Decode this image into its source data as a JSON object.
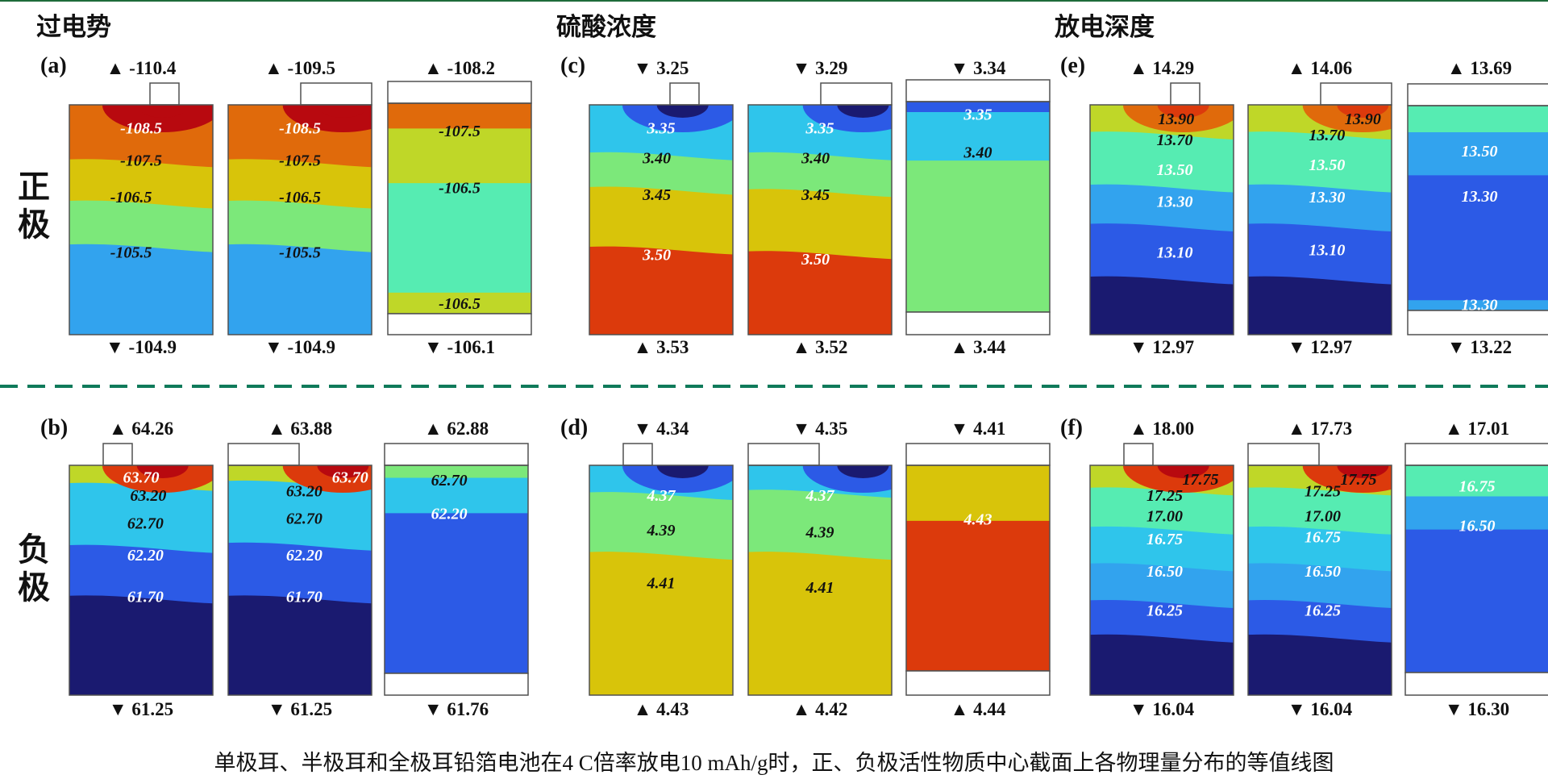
{
  "titles": [
    "过电势",
    "硫酸浓度",
    "放电深度"
  ],
  "row_labels": [
    [
      "正",
      "极"
    ],
    [
      "负",
      "极"
    ]
  ],
  "caption": "单极耳、半极耳和全极耳铅箔电池在4 C倍率放电10 mAh/g时，正、负极活性物质中心截面上各物理量分布的等值线图",
  "colors": {
    "border": "#505050",
    "divider": "#0f7a5a",
    "top_rule": "#1d6b3a",
    "dark_red": "#b8090f",
    "orange_red": "#dc3a0c",
    "orange": "#e06a0b",
    "orange_yellow": "#e2a40b",
    "yellow": "#d8c40a",
    "yellow_green": "#bfd728",
    "green": "#7ce87a",
    "aqua": "#56ecb2",
    "cyan": "#2fc5eb",
    "sky": "#32a3ee",
    "blue": "#2c5ae6",
    "navy": "#1a1a70",
    "deep_navy": "#131354"
  },
  "panels": [
    {
      "id": "a",
      "label": "(a)",
      "cells": [
        {
          "tab": "single",
          "top": "▲ -110.4",
          "bottom": "▼ -104.9",
          "bands": [
            "orange",
            "yellow",
            "green",
            "sky"
          ],
          "labels": [
            {
              "t": "-108.5",
              "c": "white"
            },
            {
              "t": "-107.5",
              "c": "black"
            },
            {
              "t": "-106.5",
              "c": "black"
            },
            {
              "t": "-105.5",
              "c": "black"
            }
          ]
        },
        {
          "tab": "half",
          "top": "▲ -109.5",
          "bottom": "▼ -104.9",
          "bands": [
            "orange",
            "yellow",
            "green",
            "sky"
          ],
          "labels": [
            {
              "t": "-108.5",
              "c": "white"
            },
            {
              "t": "-107.5",
              "c": "black"
            },
            {
              "t": "-106.5",
              "c": "black"
            },
            {
              "t": "-105.5",
              "c": "black"
            }
          ]
        },
        {
          "tab": "full",
          "top": "▲ -108.2",
          "bottom": "▼ -106.1",
          "bands": [
            "orange",
            "yellow_green",
            "aqua",
            "yellow_green"
          ],
          "labels": [
            {
              "t": "-107.5",
              "c": "black"
            },
            {
              "t": "-106.5",
              "c": "black"
            },
            {
              "t": "-106.5",
              "c": "black"
            }
          ]
        }
      ]
    },
    {
      "id": "c",
      "label": "(c)",
      "cells": [
        {
          "tab": "single",
          "top": "▼ 3.25",
          "bottom": "▲ 3.53",
          "bands": [
            "cyan",
            "green",
            "yellow",
            "orange_red"
          ],
          "labels": [
            {
              "t": "3.35",
              "c": "white"
            },
            {
              "t": "3.40",
              "c": "black"
            },
            {
              "t": "3.45",
              "c": "black"
            },
            {
              "t": "3.50",
              "c": "white"
            }
          ]
        },
        {
          "tab": "half",
          "top": "▼ 3.29",
          "bottom": "▲ 3.52",
          "bands": [
            "cyan",
            "green",
            "yellow",
            "orange_red"
          ],
          "labels": [
            {
              "t": "3.35",
              "c": "white"
            },
            {
              "t": "3.40",
              "c": "black"
            },
            {
              "t": "3.45",
              "c": "black"
            },
            {
              "t": "3.50",
              "c": "white"
            }
          ]
        },
        {
          "tab": "full",
          "top": "▼ 3.34",
          "bottom": "▲ 3.44",
          "bands": [
            "blue",
            "cyan",
            "green"
          ],
          "labels": [
            {
              "t": "3.35",
              "c": "white"
            },
            {
              "t": "3.40",
              "c": "black"
            }
          ]
        }
      ]
    },
    {
      "id": "e",
      "label": "(e)",
      "cells": [
        {
          "tab": "single",
          "top": "▲ 14.29",
          "bottom": "▼ 12.97",
          "bands": [
            "yellow_green",
            "aqua",
            "sky",
            "blue",
            "navy"
          ],
          "labels": [
            {
              "t": "13.90",
              "c": "black"
            },
            {
              "t": "13.70",
              "c": "black"
            },
            {
              "t": "13.50",
              "c": "white"
            },
            {
              "t": "13.30",
              "c": "white"
            },
            {
              "t": "13.10",
              "c": "white"
            }
          ]
        },
        {
          "tab": "half",
          "top": "▲ 14.06",
          "bottom": "▼ 12.97",
          "bands": [
            "yellow_green",
            "aqua",
            "sky",
            "blue",
            "navy"
          ],
          "labels": [
            {
              "t": "13.90",
              "c": "black"
            },
            {
              "t": "13.70",
              "c": "black"
            },
            {
              "t": "13.50",
              "c": "white"
            },
            {
              "t": "13.30",
              "c": "white"
            },
            {
              "t": "13.10",
              "c": "white"
            }
          ]
        },
        {
          "tab": "full",
          "top": "▲ 13.69",
          "bottom": "▼ 13.22",
          "bands": [
            "aqua",
            "sky",
            "blue",
            "sky"
          ],
          "labels": [
            {
              "t": "13.50",
              "c": "white"
            },
            {
              "t": "13.30",
              "c": "white"
            },
            {
              "t": "13.30",
              "c": "white"
            }
          ]
        }
      ]
    },
    {
      "id": "b",
      "label": "(b)",
      "cells": [
        {
          "tab": "single",
          "top": "▲ 64.26",
          "bottom": "▼ 61.25",
          "bands": [
            "yellow_green",
            "cyan",
            "blue",
            "navy"
          ],
          "labels": [
            {
              "t": "63.70",
              "c": "white"
            },
            {
              "t": "63.20",
              "c": "black"
            },
            {
              "t": "62.70",
              "c": "black"
            },
            {
              "t": "62.20",
              "c": "white"
            },
            {
              "t": "61.70",
              "c": "white"
            }
          ]
        },
        {
          "tab": "half",
          "top": "▲ 63.88",
          "bottom": "▼ 61.25",
          "bands": [
            "yellow_green",
            "cyan",
            "blue",
            "navy"
          ],
          "labels": [
            {
              "t": "63.70",
              "c": "white"
            },
            {
              "t": "63.20",
              "c": "black"
            },
            {
              "t": "62.70",
              "c": "black"
            },
            {
              "t": "62.20",
              "c": "white"
            },
            {
              "t": "61.70",
              "c": "white"
            }
          ]
        },
        {
          "tab": "full",
          "top": "▲ 62.88",
          "bottom": "▼ 61.76",
          "bands": [
            "green",
            "cyan",
            "blue"
          ],
          "labels": [
            {
              "t": "62.70",
              "c": "black"
            },
            {
              "t": "62.20",
              "c": "white"
            }
          ]
        }
      ]
    },
    {
      "id": "d",
      "label": "(d)",
      "cells": [
        {
          "tab": "single",
          "top": "▼ 4.34",
          "bottom": "▲ 4.43",
          "bands": [
            "cyan",
            "green",
            "yellow"
          ],
          "labels": [
            {
              "t": "4.37",
              "c": "white"
            },
            {
              "t": "4.39",
              "c": "black"
            },
            {
              "t": "4.41",
              "c": "black"
            }
          ]
        },
        {
          "tab": "half",
          "top": "▼ 4.35",
          "bottom": "▲ 4.42",
          "bands": [
            "cyan",
            "green",
            "yellow"
          ],
          "labels": [
            {
              "t": "4.37",
              "c": "white"
            },
            {
              "t": "4.39",
              "c": "black"
            },
            {
              "t": "4.41",
              "c": "black"
            }
          ]
        },
        {
          "tab": "full",
          "top": "▼ 4.41",
          "bottom": "▲ 4.44",
          "bands": [
            "yellow",
            "orange_red"
          ],
          "labels": [
            {
              "t": "4.43",
              "c": "white"
            }
          ]
        }
      ]
    },
    {
      "id": "f",
      "label": "(f)",
      "cells": [
        {
          "tab": "single",
          "top": "▲ 18.00",
          "bottom": "▼ 16.04",
          "bands": [
            "yellow_green",
            "aqua",
            "cyan",
            "sky",
            "blue",
            "navy"
          ],
          "labels": [
            {
              "t": "17.75",
              "c": "black"
            },
            {
              "t": "17.25",
              "c": "black"
            },
            {
              "t": "17.00",
              "c": "black"
            },
            {
              "t": "16.75",
              "c": "white"
            },
            {
              "t": "16.50",
              "c": "white"
            },
            {
              "t": "16.25",
              "c": "white"
            }
          ]
        },
        {
          "tab": "half",
          "top": "▲ 17.73",
          "bottom": "▼ 16.04",
          "bands": [
            "yellow_green",
            "aqua",
            "cyan",
            "sky",
            "blue",
            "navy"
          ],
          "labels": [
            {
              "t": "17.75",
              "c": "black"
            },
            {
              "t": "17.25",
              "c": "black"
            },
            {
              "t": "17.00",
              "c": "black"
            },
            {
              "t": "16.75",
              "c": "white"
            },
            {
              "t": "16.50",
              "c": "white"
            },
            {
              "t": "16.25",
              "c": "white"
            }
          ]
        },
        {
          "tab": "full",
          "top": "▲ 17.01",
          "bottom": "▼ 16.30",
          "bands": [
            "aqua",
            "sky",
            "blue"
          ],
          "labels": [
            {
              "t": "16.75",
              "c": "white"
            },
            {
              "t": "16.50",
              "c": "white"
            }
          ]
        }
      ]
    }
  ]
}
